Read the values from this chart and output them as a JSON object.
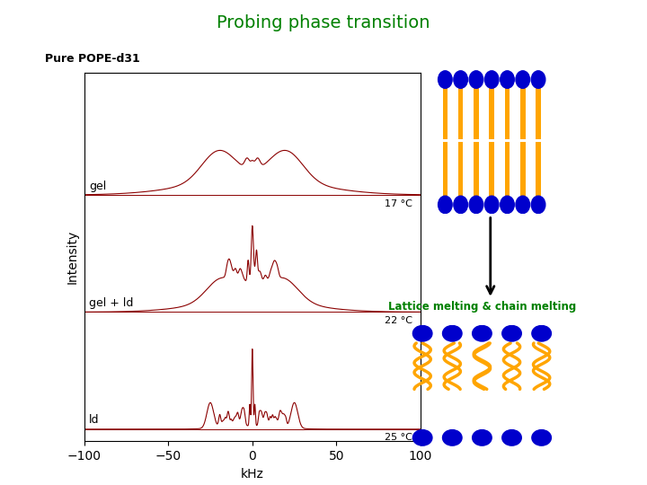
{
  "title": "Probing phase transition",
  "title_color": "#008000",
  "subtitle": "Pure POPE-d31",
  "ylabel": "Intensity",
  "xlabel": "kHz",
  "xlim": [
    -100,
    100
  ],
  "label_gel": "gel",
  "label_gel_ld": "gel + ld",
  "label_ld": "ld",
  "temp_gel": "17 °C",
  "temp_gel_ld": "22 °C",
  "temp_ld": "25 °C",
  "lattice_text": "Lattice melting & chain melting",
  "lattice_text_color": "#008000",
  "spectrum_color": "#8B0000",
  "background_color": "#ffffff",
  "head_color": "#0000CC",
  "chain_color": "#FFA500",
  "xticks": [
    -100,
    -50,
    0,
    50,
    100
  ],
  "n_gel_lipids": 7,
  "n_ld_lipids": 5
}
